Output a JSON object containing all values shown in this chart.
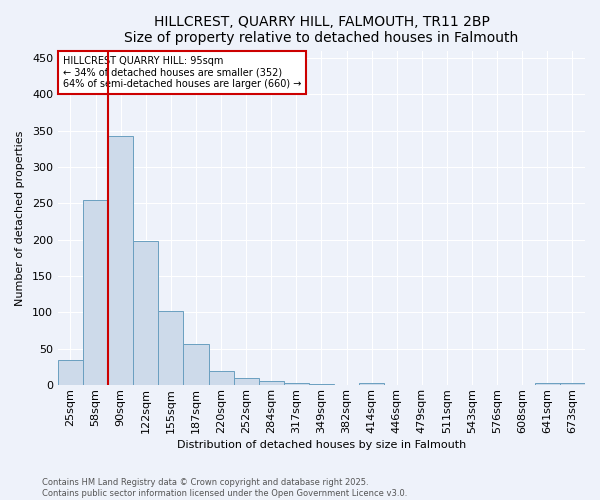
{
  "title": "HILLCREST, QUARRY HILL, FALMOUTH, TR11 2BP",
  "subtitle": "Size of property relative to detached houses in Falmouth",
  "xlabel": "Distribution of detached houses by size in Falmouth",
  "ylabel": "Number of detached properties",
  "bins": [
    "25sqm",
    "58sqm",
    "90sqm",
    "122sqm",
    "155sqm",
    "187sqm",
    "220sqm",
    "252sqm",
    "284sqm",
    "317sqm",
    "349sqm",
    "382sqm",
    "414sqm",
    "446sqm",
    "479sqm",
    "511sqm",
    "543sqm",
    "576sqm",
    "608sqm",
    "641sqm",
    "673sqm"
  ],
  "values": [
    35,
    255,
    343,
    198,
    102,
    56,
    20,
    10,
    6,
    3,
    2,
    0,
    3,
    0,
    0,
    0,
    0,
    0,
    0,
    3,
    3
  ],
  "bar_color": "#cddaea",
  "bar_edge_color": "#6a9fc0",
  "property_line_color": "#cc0000",
  "property_line_bin_index": 2,
  "ylim": [
    0,
    460
  ],
  "yticks": [
    0,
    50,
    100,
    150,
    200,
    250,
    300,
    350,
    400,
    450
  ],
  "annotation_text": "HILLCREST QUARRY HILL: 95sqm\n← 34% of detached houses are smaller (352)\n64% of semi-detached houses are larger (660) →",
  "annotation_box_color": "#cc0000",
  "footer_line1": "Contains HM Land Registry data © Crown copyright and database right 2025.",
  "footer_line2": "Contains public sector information licensed under the Open Government Licence v3.0.",
  "bg_color": "#eef2fa",
  "grid_color": "#ffffff",
  "title_fontsize": 10,
  "axis_label_fontsize": 8,
  "tick_fontsize": 8,
  "annotation_fontsize": 7,
  "footer_fontsize": 6
}
